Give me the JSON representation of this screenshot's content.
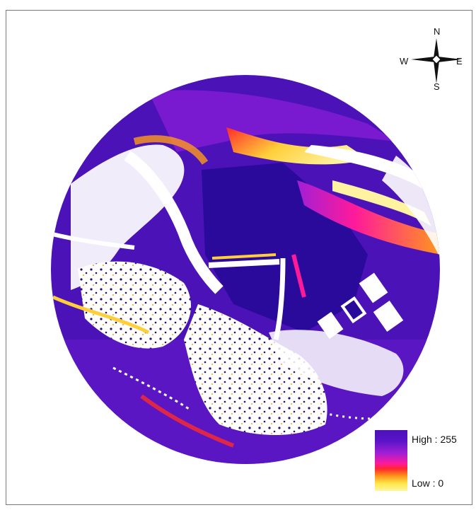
{
  "map": {
    "compass": {
      "north": "N",
      "south": "S",
      "west": "W",
      "east": "E"
    },
    "legend": {
      "high_label": "High : 255",
      "low_label": "Low : 0",
      "max_value": 255,
      "min_value": 0
    },
    "colors": {
      "high": "#4b12b8",
      "mid": "#ff1a9a",
      "red": "#ff2a2a",
      "orange": "#ff9a1a",
      "low": "#fff7a0",
      "white": "#ffffff"
    }
  }
}
